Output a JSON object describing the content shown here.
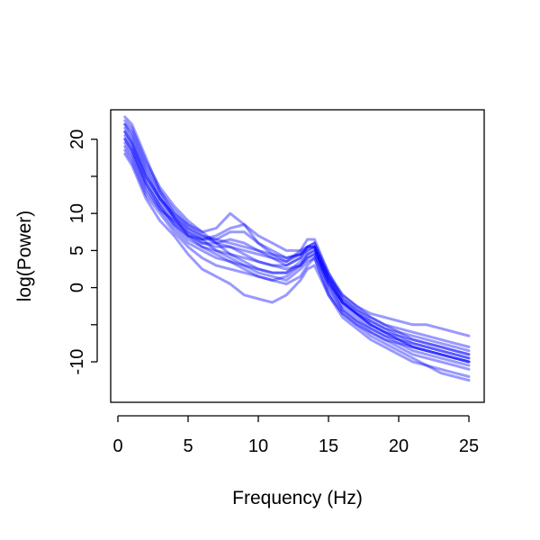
{
  "chart_data": {
    "type": "line",
    "title": "",
    "xlabel": "Frequency (Hz)",
    "ylabel": "log(Power)",
    "xlim": [
      0,
      25
    ],
    "ylim": [
      -14,
      23
    ],
    "xticks": [
      0,
      5,
      10,
      15,
      20,
      25
    ],
    "yticks": [
      -10,
      -5,
      0,
      5,
      10,
      15,
      20
    ],
    "ytick_labels": [
      "-10",
      "",
      "0",
      "5",
      "10",
      "",
      "20"
    ],
    "line_color": "#0000ff",
    "line_opacity": 0.4,
    "x": [
      0.5,
      1,
      2,
      3,
      4,
      5,
      6,
      7,
      8,
      9,
      10,
      11,
      12,
      13,
      13.5,
      14,
      15,
      16,
      17,
      18,
      19,
      20,
      21,
      22,
      23,
      24,
      25
    ],
    "series": [
      {
        "values": [
          22.5,
          21.5,
          17,
          13.5,
          11,
          9,
          7.5,
          6,
          4.5,
          3.5,
          2.5,
          2,
          2,
          3.5,
          4.5,
          5,
          1,
          -2.5,
          -4,
          -5.5,
          -6.5,
          -7.5,
          -8.5,
          -9,
          -9.5,
          -10,
          -10.5
        ]
      },
      {
        "values": [
          21,
          19.5,
          15,
          12,
          10,
          8.5,
          7.5,
          8,
          10,
          8.5,
          6,
          4.5,
          3.5,
          4.5,
          5.5,
          5.5,
          0,
          -3,
          -4.5,
          -5.5,
          -6.5,
          -7,
          -7.5,
          -8,
          -8.5,
          -9,
          -9.5
        ]
      },
      {
        "values": [
          20,
          18.5,
          14,
          11,
          8.5,
          6.5,
          5.5,
          5,
          4.5,
          4,
          3.5,
          3,
          2.5,
          3,
          4,
          4.5,
          0.5,
          -2,
          -3.5,
          -5,
          -6,
          -7,
          -8,
          -8.5,
          -9,
          -9.5,
          -10
        ]
      },
      {
        "values": [
          19,
          17.5,
          13,
          10.5,
          9,
          7.5,
          6.5,
          6.5,
          7.5,
          7.5,
          6,
          5,
          4,
          4.5,
          5,
          5.5,
          1.5,
          -1.5,
          -3,
          -4,
          -5,
          -5.5,
          -6,
          -6.5,
          -7,
          -7.5,
          -8
        ]
      },
      {
        "values": [
          22,
          20.5,
          16,
          12.5,
          9.5,
          7,
          5.5,
          4.5,
          3.5,
          2.5,
          1.5,
          1,
          0.5,
          1.5,
          3,
          4,
          -1,
          -4,
          -5.5,
          -7,
          -8,
          -9,
          -10,
          -10.5,
          -11,
          -11.5,
          -12
        ]
      },
      {
        "values": [
          20.5,
          19,
          14.5,
          11.5,
          9,
          7,
          6,
          6,
          6.5,
          6,
          5,
          4,
          3,
          4,
          5,
          5.5,
          1,
          -2,
          -3.5,
          -4.5,
          -5.5,
          -6.5,
          -7,
          -7.5,
          -8,
          -8.5,
          -9
        ]
      },
      {
        "values": [
          18,
          16.5,
          12,
          9,
          7,
          4.5,
          2.5,
          1.5,
          0.5,
          -1,
          -1.5,
          -2,
          -1,
          1,
          2.5,
          3,
          -1,
          -3.5,
          -5,
          -6,
          -7,
          -7.5,
          -8,
          -8.5,
          -9,
          -9.5,
          -10
        ]
      },
      {
        "values": [
          21.5,
          20,
          15.5,
          12,
          9.5,
          7.5,
          6,
          5.5,
          5.5,
          5,
          4.5,
          4,
          3.5,
          5,
          6.5,
          6.5,
          2,
          -1.5,
          -3,
          -4.5,
          -5.5,
          -6,
          -7,
          -7.5,
          -8,
          -8.5,
          -9
        ]
      },
      {
        "values": [
          19.5,
          18,
          13.5,
          10.5,
          8,
          6,
          5,
          4,
          3.5,
          3,
          2.5,
          2,
          2,
          3,
          4,
          4.5,
          0.5,
          -3,
          -4.5,
          -6,
          -7,
          -8,
          -9,
          -9.5,
          -10,
          -10.5,
          -11
        ]
      },
      {
        "values": [
          23,
          22,
          17.5,
          13,
          10,
          8,
          6.5,
          5,
          4,
          3,
          2,
          1.5,
          1,
          2.5,
          3.5,
          4,
          -0.5,
          -3.5,
          -5,
          -6.5,
          -7.5,
          -8.5,
          -9.5,
          -10.5,
          -11.5,
          -12,
          -12.5
        ]
      },
      {
        "values": [
          20,
          18.5,
          14,
          11,
          8.5,
          7,
          6.5,
          7,
          8,
          8.5,
          7,
          6,
          5,
          5,
          5.5,
          5.5,
          1.5,
          -1,
          -2.5,
          -3.5,
          -4,
          -4.5,
          -5,
          -5,
          -5.5,
          -6,
          -6.5
        ]
      },
      {
        "values": [
          21,
          19.5,
          15,
          12,
          9.5,
          8,
          7,
          6.5,
          6,
          5.5,
          5,
          4.5,
          4,
          4.5,
          5.5,
          6,
          1.5,
          -2,
          -3.5,
          -5,
          -6,
          -7,
          -8,
          -8.5,
          -9,
          -9.5,
          -10
        ]
      },
      {
        "values": [
          18.5,
          17,
          12.5,
          10,
          7.5,
          5.5,
          4,
          3,
          2.5,
          2,
          1.5,
          1,
          1.5,
          3,
          4.5,
          5,
          1,
          -2,
          -3.5,
          -5,
          -6,
          -6.5,
          -7.5,
          -8,
          -8.5,
          -9,
          -9.5
        ]
      },
      {
        "values": [
          22,
          21,
          16.5,
          13,
          10.5,
          8.5,
          7,
          6,
          5.5,
          4.5,
          3.5,
          3,
          3,
          4,
          5.5,
          6,
          2,
          -1,
          -2.5,
          -4,
          -5,
          -6,
          -6.5,
          -7,
          -7.5,
          -8,
          -8.5
        ]
      }
    ]
  }
}
